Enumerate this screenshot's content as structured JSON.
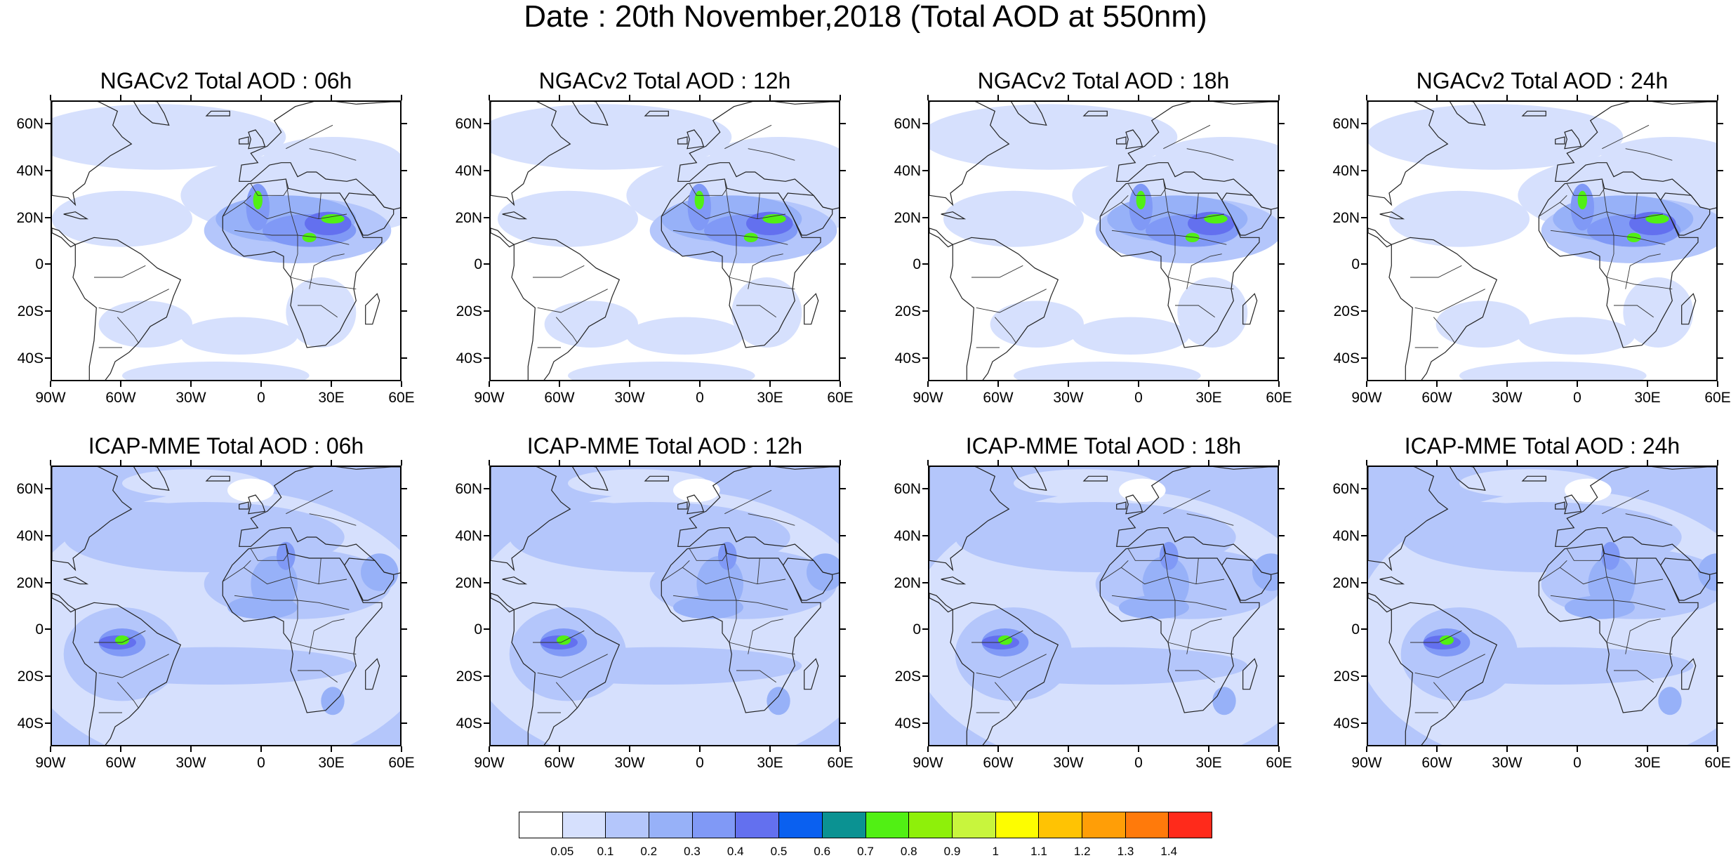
{
  "title": "Date : 20th November,2018 (Total AOD at 550nm)",
  "panels": [
    {
      "title": "NGACv2 Total AOD : 06h",
      "model": "ngac"
    },
    {
      "title": "NGACv2 Total AOD : 12h",
      "model": "ngac"
    },
    {
      "title": "NGACv2 Total AOD : 18h",
      "model": "ngac"
    },
    {
      "title": "NGACv2 Total AOD : 24h",
      "model": "ngac"
    },
    {
      "title": "ICAP-MME Total AOD : 06h",
      "model": "icap"
    },
    {
      "title": "ICAP-MME Total AOD : 12h",
      "model": "icap"
    },
    {
      "title": "ICAP-MME Total AOD : 18h",
      "model": "icap"
    },
    {
      "title": "ICAP-MME Total AOD : 24h",
      "model": "icap"
    }
  ],
  "axes": {
    "lat_ticks": [
      "60N",
      "40N",
      "20N",
      "0",
      "20S",
      "40S"
    ],
    "lon_ticks": [
      "90W",
      "60W",
      "30W",
      "0",
      "30E",
      "60E"
    ],
    "lat_values": [
      60,
      40,
      20,
      0,
      -20,
      -40
    ],
    "lon_values": [
      -90,
      -60,
      -30,
      0,
      30,
      60
    ],
    "lat_range": [
      -50,
      70
    ],
    "lon_range": [
      -90,
      60
    ]
  },
  "colorbar": {
    "labels": [
      "0.05",
      "0.1",
      "0.2",
      "0.3",
      "0.4",
      "0.5",
      "0.6",
      "0.7",
      "0.8",
      "0.9",
      "1",
      "1.1",
      "1.2",
      "1.3",
      "1.4"
    ],
    "colors": [
      "#ffffff",
      "#d6e0fd",
      "#b4c6fb",
      "#97b1f8",
      "#8099f6",
      "#6370ef",
      "#0a60f0",
      "#0b9292",
      "#51f014",
      "#8ef00a",
      "#c8f53d",
      "#fdfd00",
      "#ffc303",
      "#ff9e07",
      "#ff7a0b",
      "#ff2a1b"
    ]
  }
}
